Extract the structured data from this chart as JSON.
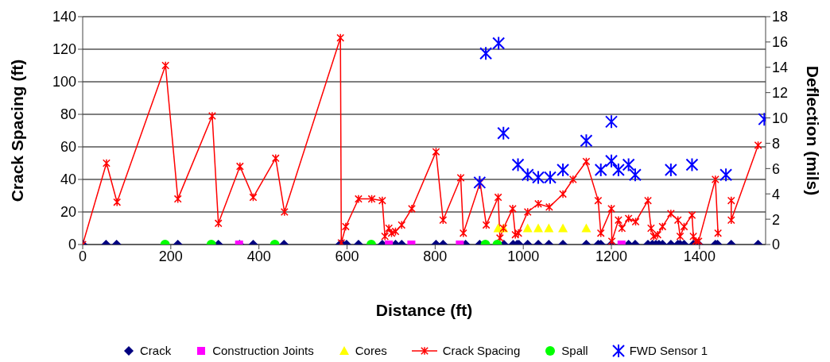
{
  "chart_data": {
    "type": "scatter",
    "xlabel": "Distance (ft)",
    "ylabel": "Crack Spacing (ft)",
    "y2label": "Deflection (mils)",
    "xlim": [
      0,
      1550
    ],
    "xticks": [
      0,
      200,
      400,
      600,
      800,
      1000,
      1200,
      1400
    ],
    "ylim": [
      0,
      140
    ],
    "yticks": [
      0,
      20,
      40,
      60,
      80,
      100,
      120,
      140
    ],
    "y2lim": [
      0,
      18
    ],
    "y2ticks": [
      0,
      2,
      4,
      6,
      8,
      10,
      12,
      14,
      16,
      18
    ],
    "grid": "y",
    "legend": "bottom",
    "series": [
      {
        "name": "Crack",
        "marker": "diamond",
        "color": "#000080",
        "x": [
          0,
          53,
          77,
          216,
          308,
          356,
          387,
          457,
          584,
          590,
          599,
          626,
          680,
          710,
          724,
          802,
          818,
          869,
          901,
          956,
          977,
          986,
          990,
          1010,
          1034,
          1058,
          1090,
          1143,
          1170,
          1176,
          1200,
          1239,
          1254,
          1283,
          1293,
          1301,
          1308,
          1316,
          1335,
          1351,
          1356,
          1365,
          1386,
          1398,
          1436,
          1441,
          1472,
          1533
        ],
        "values": [
          0,
          0,
          0,
          0,
          0,
          0,
          0,
          0,
          0,
          0,
          0,
          0,
          0,
          0,
          0,
          0,
          0,
          0,
          0,
          0,
          0,
          0,
          0,
          0,
          0,
          0,
          0,
          0,
          0,
          0,
          0,
          0,
          0,
          0,
          0,
          0,
          0,
          0,
          0,
          0,
          0,
          0,
          0,
          0,
          0,
          0,
          0,
          0
        ]
      },
      {
        "name": "Construction Joints",
        "marker": "square",
        "color": "#ff00ff",
        "x": [
          355,
          695,
          746,
          856,
          1223
        ],
        "values": [
          0,
          0,
          0,
          0,
          0
        ]
      },
      {
        "name": "Cores",
        "marker": "triangle",
        "color": "#ffff00",
        "x": [
          943,
          955,
          1010,
          1034,
          1058,
          1090,
          1143
        ],
        "values": [
          10,
          10,
          10,
          10,
          10,
          10,
          10
        ]
      },
      {
        "name": "Crack Spacing",
        "type": "line",
        "marker": "cross",
        "line_style": "solid",
        "color": "#ff0000",
        "x": [
          0,
          54,
          78,
          188,
          216,
          294,
          308,
          357,
          387,
          438,
          458,
          585,
          587,
          597,
          626,
          656,
          680,
          686,
          695,
          701,
          710,
          724,
          747,
          802,
          818,
          858,
          864,
          902,
          916,
          943,
          947,
          955,
          976,
          982,
          989,
          1010,
          1034,
          1059,
          1090,
          1113,
          1143,
          1170,
          1176,
          1200,
          1201,
          1216,
          1224,
          1239,
          1255,
          1283,
          1290,
          1296,
          1305,
          1316,
          1335,
          1351,
          1356,
          1365,
          1383,
          1386,
          1392,
          1398,
          1436,
          1442,
          1457,
          1472,
          1472,
          1533
        ],
        "values": [
          0,
          50,
          26,
          110,
          28,
          79,
          13,
          48,
          29,
          53,
          20,
          127,
          1,
          11,
          28,
          28,
          27,
          5,
          10,
          7,
          8,
          12,
          22,
          57,
          15,
          41,
          7,
          38,
          12,
          29,
          4,
          10,
          22,
          6,
          7,
          20,
          25,
          23,
          31,
          40,
          51,
          27,
          7,
          22,
          2,
          15,
          10,
          16,
          14,
          27,
          10,
          5,
          6,
          11,
          19,
          15,
          5,
          11,
          18,
          5,
          2,
          2,
          40,
          7,
          null,
          27,
          15,
          61
        ]
      },
      {
        "name": "Spall",
        "marker": "circle",
        "color": "#00ff00",
        "x": [
          187,
          292,
          436,
          655,
          914,
          941
        ],
        "values": [
          0,
          0,
          0,
          0,
          0,
          0
        ]
      },
      {
        "name": "FWD Sensor 1",
        "marker": "cross",
        "axis": "y2",
        "color": "#0000ff",
        "x": [
          901,
          915,
          944,
          955,
          988,
          1010,
          1034,
          1061,
          1090,
          1143,
          1176,
          1200,
          1200,
          1216,
          1239,
          1254,
          1335,
          1383,
          1460,
          1547
        ],
        "values": [
          4.9,
          15.1,
          15.9,
          8.8,
          6.3,
          5.5,
          5.3,
          5.3,
          5.9,
          8.2,
          5.9,
          9.7,
          6.6,
          5.9,
          6.3,
          5.5,
          5.9,
          6.3,
          5.5,
          9.9
        ]
      }
    ]
  }
}
